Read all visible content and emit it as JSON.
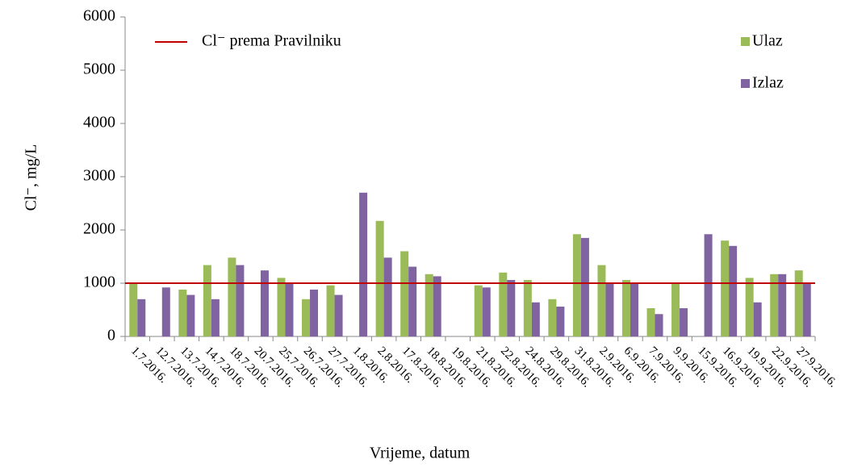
{
  "chart_data": {
    "type": "bar",
    "ylabel": "Cl⁻, mg/L",
    "xlabel": "Vrijeme, datum",
    "categories": [
      "1.7.2016.",
      "12.7.2016.",
      "13.7.2016.",
      "14.7.2016.",
      "18.7.2016.",
      "20.7.2016.",
      "25.7.2016.",
      "26.7.2016.",
      "27.7.2016.",
      "1.8.2016.",
      "2.8.2016.",
      "17.8.2016.",
      "18.8.2016.",
      "19.8.2016.",
      "21.8.2016.",
      "22.8.2016.",
      "24.8.2016.",
      "29.8.2016.",
      "31.8.2016.",
      "2.9.2016.",
      "6.9.2016.",
      "7.9.2016.",
      "9.9.2016.",
      "15.9.2016.",
      "16.9.2016.",
      "19.9.2016.",
      "22.9.2016.",
      "27.9.2016."
    ],
    "series": [
      {
        "name": "Ulaz",
        "color": "#9bbb59",
        "values": [
          1000,
          null,
          880,
          1340,
          1480,
          null,
          1100,
          700,
          960,
          null,
          2170,
          1600,
          1170,
          null,
          960,
          1200,
          1060,
          700,
          1920,
          1340,
          1060,
          530,
          1000,
          null,
          1800,
          1100,
          1170,
          1240
        ]
      },
      {
        "name": "Izlaz",
        "color": "#8064a2",
        "values": [
          700,
          920,
          780,
          700,
          1340,
          1240,
          1000,
          880,
          780,
          2700,
          1480,
          1310,
          1130,
          null,
          920,
          1060,
          640,
          560,
          1850,
          1000,
          990,
          420,
          530,
          1920,
          1700,
          640,
          1170,
          1000
        ]
      }
    ],
    "reference_line": {
      "name": "Cl⁻ prema Pravilniku",
      "color": "#c00000",
      "value": 1000
    },
    "ylim": [
      0,
      6000
    ],
    "yticks": [
      0,
      1000,
      2000,
      3000,
      4000,
      5000,
      6000
    ]
  }
}
